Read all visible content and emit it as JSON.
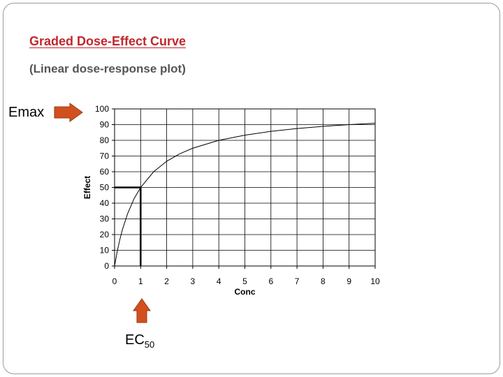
{
  "slide": {
    "title": "Graded Dose-Effect Curve",
    "subtitle": "(Linear dose-response plot)"
  },
  "annotations": {
    "emax_label": "Emax",
    "ec50_main": "EC",
    "ec50_sub": "50",
    "arrow_color": "#d2501e"
  },
  "chart_data": {
    "type": "line",
    "title": "",
    "xlabel": "Conc",
    "ylabel": "Effect",
    "xlim": [
      0,
      10
    ],
    "ylim": [
      0,
      100
    ],
    "xticks": [
      0,
      1,
      2,
      3,
      4,
      5,
      6,
      7,
      8,
      9,
      10
    ],
    "yticks": [
      0,
      10,
      20,
      30,
      40,
      50,
      60,
      70,
      80,
      90,
      100
    ],
    "grid": true,
    "legend": "none",
    "series": [
      {
        "x": [
          0,
          0.1,
          0.2,
          0.3,
          0.5,
          0.75,
          1,
          1.5,
          2,
          2.5,
          3,
          4,
          5,
          6,
          7,
          8,
          9,
          10
        ],
        "y": [
          0,
          9.1,
          16.7,
          23.1,
          33.3,
          42.9,
          50,
          60,
          66.7,
          71.4,
          75,
          80,
          83.3,
          85.7,
          87.5,
          88.9,
          90,
          90.9
        ]
      }
    ],
    "ec50_guide": {
      "x": 1,
      "y": 50
    }
  }
}
